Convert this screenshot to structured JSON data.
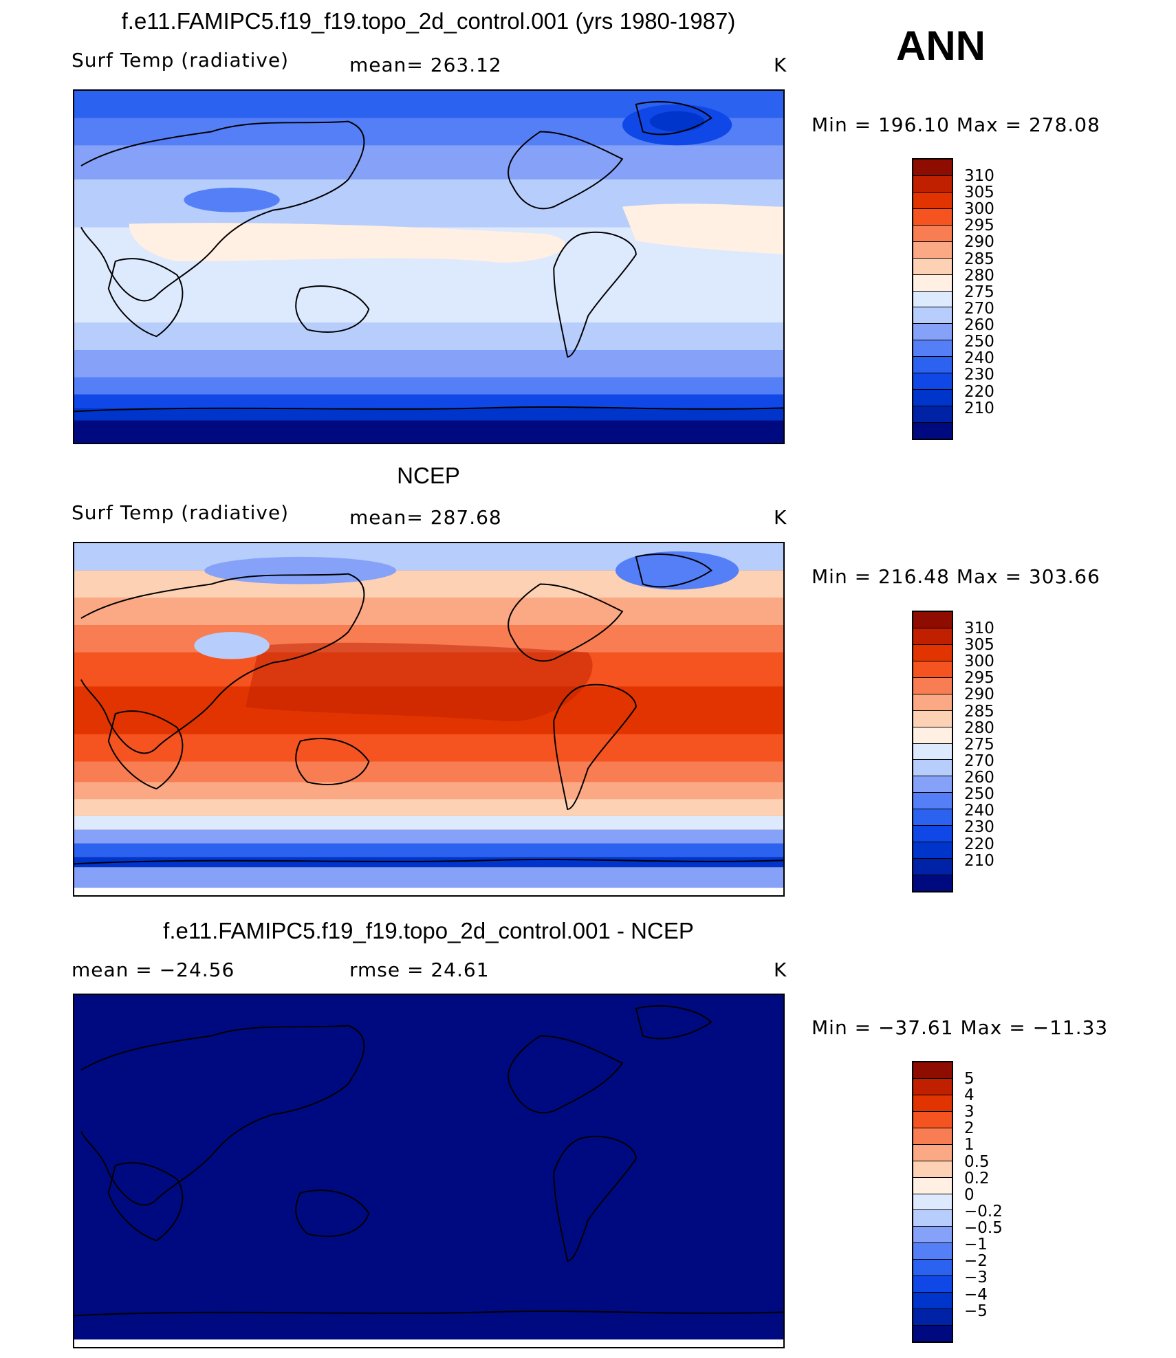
{
  "title_top": "f.e11.FAMIPC5.f19_f19.topo_2d_control.001 (yrs 1980-1987)",
  "season": "ANN",
  "colors": {
    "temp_scale": [
      "#000a80",
      "#0022a6",
      "#0035cc",
      "#0f48e6",
      "#2c62f0",
      "#557ff7",
      "#85a2f8",
      "#b7cdfb",
      "#dde9fd",
      "#fff0e3",
      "#fdd1b4",
      "#fba985",
      "#f87d52",
      "#f5531f",
      "#e23400",
      "#c01f00",
      "#8f0c00"
    ],
    "coast": "#000000"
  },
  "panels": [
    {
      "name": "model",
      "variable": "Surf Temp (radiative)",
      "stat1": "mean= 263.12",
      "units": "K",
      "minmax": "Min = 196.10 Max = 278.08",
      "ticks": [
        "310",
        "305",
        "300",
        "295",
        "290",
        "285",
        "280",
        "275",
        "270",
        "260",
        "250",
        "240",
        "230",
        "220",
        "210"
      ]
    },
    {
      "name": "obs",
      "title": "NCEP",
      "variable": "Surf Temp (radiative)",
      "stat1": "mean= 287.68",
      "units": "K",
      "minmax": "Min = 216.48 Max = 303.66",
      "ticks": [
        "310",
        "305",
        "300",
        "295",
        "290",
        "285",
        "280",
        "275",
        "270",
        "260",
        "250",
        "240",
        "230",
        "220",
        "210"
      ]
    },
    {
      "name": "diff",
      "title": "f.e11.FAMIPC5.f19_f19.topo_2d_control.001 - NCEP",
      "stat1": "mean = −24.56",
      "stat2": "rmse =  24.61",
      "units": "K",
      "minmax": "Min = −37.61 Max = −11.33",
      "ticks": [
        "5",
        "4",
        "3",
        "2",
        "1",
        "0.5",
        "0.2",
        "0",
        "−0.2",
        "−0.5",
        "−1",
        "−2",
        "−3",
        "−4",
        "−5"
      ]
    }
  ]
}
